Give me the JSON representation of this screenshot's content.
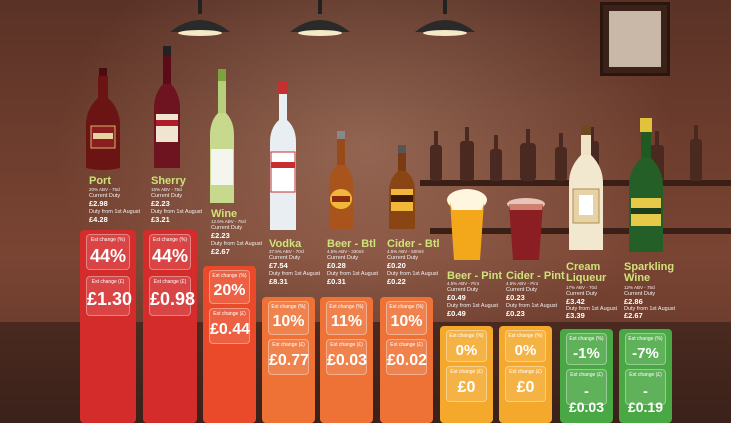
{
  "colors": {
    "red": "#d42b2b",
    "orange_red": "#ea4a2a",
    "orange": "#ee7235",
    "amber": "#f5a92c",
    "green": "#4aa844",
    "name_text": "#cfe37a"
  },
  "labels": {
    "current_duty": "Current Duty",
    "duty_from": "Duty from 1st August",
    "est_pct": "Est change (%)",
    "est_gbp": "Est change (£)"
  },
  "drinks": [
    {
      "name": "Port",
      "abv": "20% ABV - 75cl",
      "current": "£2.98",
      "from": "£4.28",
      "pct": "44%",
      "gbp": "£1.30",
      "icon": "port-bottle-icon",
      "color": "#d42b2b"
    },
    {
      "name": "Sherry",
      "abv": "15% ABV - 75cl",
      "current": "£2.23",
      "from": "£3.21",
      "pct": "44%",
      "gbp": "£0.98",
      "icon": "sherry-bottle-icon",
      "color": "#d42b2b"
    },
    {
      "name": "Wine",
      "abv": "12.5% ABV - 75cl",
      "current": "£2.23",
      "from": "£2.67",
      "pct": "20%",
      "gbp": "£0.44",
      "icon": "wine-bottle-icon",
      "color": "#ea4a2a"
    },
    {
      "name": "Vodka",
      "abv": "37.5% ABV - 70cl",
      "current": "£7.54",
      "from": "£8.31",
      "pct": "10%",
      "gbp": "£0.77",
      "icon": "vodka-bottle-icon",
      "color": "#ee7235"
    },
    {
      "name": "Beer - Btl",
      "abv": "4.5% ABV - 330ml",
      "current": "£0.28",
      "from": "£0.31",
      "pct": "11%",
      "gbp": "£0.03",
      "icon": "beer-bottle-icon",
      "color": "#ee7235"
    },
    {
      "name": "Cider - Btl",
      "abv": "4.5% ABV - 500ml",
      "current": "£0.20",
      "from": "£0.22",
      "pct": "10%",
      "gbp": "£0.02",
      "icon": "cider-bottle-icon",
      "color": "#ee7235"
    },
    {
      "name": "Beer - Pint",
      "abv": "4.5% ABV - Pint",
      "current": "£0.49",
      "from": "£0.49",
      "pct": "0%",
      "gbp": "£0",
      "icon": "beer-pint-icon",
      "color": "#f5a92c"
    },
    {
      "name": "Cider - Pint",
      "abv": "4.5% ABV - Pint",
      "current": "£0.23",
      "from": "£0.23",
      "pct": "0%",
      "gbp": "£0",
      "icon": "cider-pint-icon",
      "color": "#f5a92c"
    },
    {
      "name": "Cream Liqueur",
      "abv": "17% ABV - 70cl",
      "current": "£3.42",
      "from": "£3.39",
      "pct": "-1%",
      "gbp": "-£0.03",
      "icon": "cream-liqueur-bottle-icon",
      "color": "#4aa844"
    },
    {
      "name": "Sparkling Wine",
      "abv": "12% ABV - 75cl",
      "current": "£2.86",
      "from": "£2.67",
      "pct": "-7%",
      "gbp": "-£0.19",
      "icon": "sparkling-wine-bottle-icon",
      "color": "#4aa844"
    }
  ]
}
